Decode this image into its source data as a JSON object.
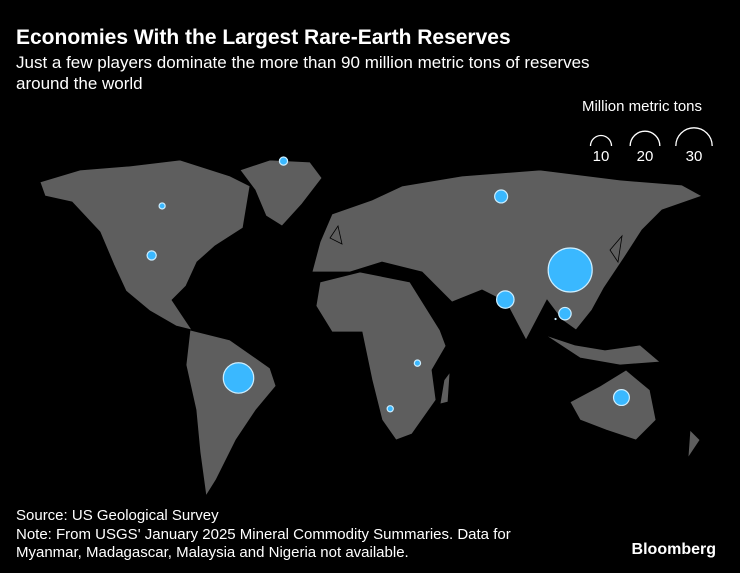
{
  "chart_data": {
    "type": "bubble-map",
    "title": "Economies With the Largest Rare-Earth Reserves",
    "subtitle": [
      "Just a few players dominate the more than 90 million metric tons of reserves",
      "around the world"
    ],
    "size_legend_title": "Million metric tons",
    "size_legend_values": [
      10,
      20,
      30
    ],
    "color": "#3ab8ff",
    "points": [
      {
        "lon": 110,
        "lat": 35,
        "value": 44
      },
      {
        "lon": -48.5,
        "lat": -15,
        "value": 21
      },
      {
        "lon": 79,
        "lat": 22,
        "value": 6.9
      },
      {
        "lon": 134.5,
        "lat": -24,
        "value": 5.7
      },
      {
        "lon": 77,
        "lat": 62,
        "value": 3.8
      },
      {
        "lon": 107.5,
        "lat": 15.5,
        "value": 3.5
      },
      {
        "lon": -90,
        "lat": 41,
        "value": 1.9
      },
      {
        "lon": -27,
        "lat": 72,
        "value": 1.5
      },
      {
        "lon": 37,
        "lat": -8,
        "value": 0.89
      },
      {
        "lon": 24,
        "lat": -29,
        "value": 0.86
      },
      {
        "lon": -85,
        "lat": 59,
        "value": 0.83
      },
      {
        "lon": 103,
        "lat": 13,
        "value": 0.0045
      }
    ],
    "source": "Source: US Geological Survey",
    "note": [
      "Note: From USGS' January 2025 Mineral Commodity Summaries. Data for",
      "Myanmar, Madagascar, Malaysia and Nigeria not available."
    ],
    "brand": "Bloomberg"
  }
}
